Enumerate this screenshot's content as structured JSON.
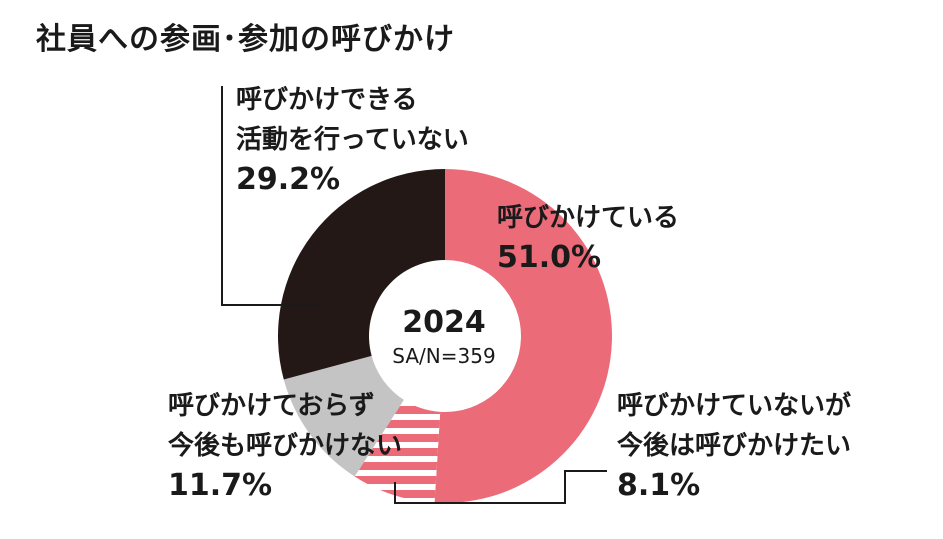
{
  "chart_data": {
    "type": "pie",
    "title": "社員への参画･参加の呼びかけ",
    "center_label": "2024",
    "center_sublabel": "SA/N=359",
    "slices": [
      {
        "label_lines": [
          "呼びかけている"
        ],
        "value": 51.0,
        "value_text": "51.0%",
        "color": "#ec6b78",
        "pattern": "solid"
      },
      {
        "label_lines": [
          "呼びかけていないが",
          "今後は呼びかけたい"
        ],
        "value": 8.1,
        "value_text": "8.1%",
        "color": "#ec6b78",
        "pattern": "stripes"
      },
      {
        "label_lines": [
          "呼びかけておらず",
          "今後も呼びかけない"
        ],
        "value": 11.7,
        "value_text": "11.7%",
        "color": "#c4c4c4",
        "pattern": "solid"
      },
      {
        "label_lines": [
          "呼びかけできる",
          "活動を行っていない"
        ],
        "value": 29.2,
        "value_text": "29.2%",
        "color": "#231815",
        "pattern": "solid"
      }
    ]
  }
}
